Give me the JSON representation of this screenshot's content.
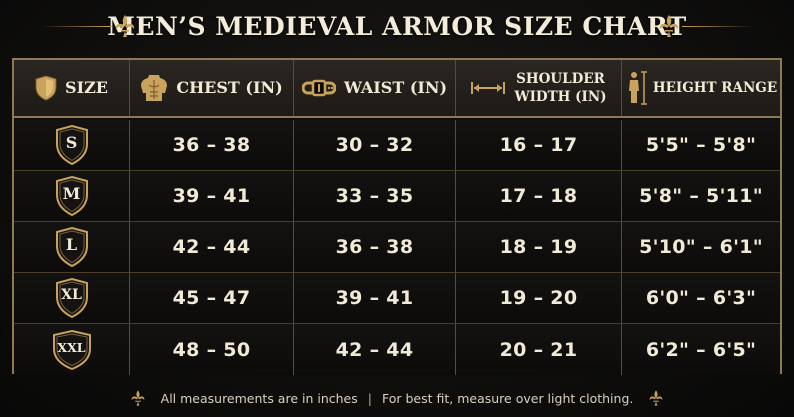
{
  "title": "MEN’S MEDIEVAL ARMOR SIZE CHART",
  "headers": {
    "size": "SIZE",
    "chest": "CHEST (IN)",
    "waist": "WAIST (IN)",
    "shoulder_line1": "SHOULDER",
    "shoulder_line2": "WIDTH (IN)",
    "height": "HEIGHT RANGE"
  },
  "rows": [
    {
      "size": "S",
      "chest": "36 – 38",
      "waist": "30 – 32",
      "shoulder": "16 – 17",
      "height": "5'5\" – 5'8\""
    },
    {
      "size": "M",
      "chest": "39 – 41",
      "waist": "33 – 35",
      "shoulder": "17 – 18",
      "height": "5'8\" – 5'11\""
    },
    {
      "size": "L",
      "chest": "42 – 44",
      "waist": "36 – 38",
      "shoulder": "18 – 19",
      "height": "5'10\" – 6'1\""
    },
    {
      "size": "XL",
      "chest": "45 – 47",
      "waist": "39 – 41",
      "shoulder": "19 – 20",
      "height": "6'0\" – 6'3\""
    },
    {
      "size": "XXL",
      "chest": "48 – 50",
      "waist": "42 – 44",
      "shoulder": "20 – 21",
      "height": "6'2\" – 6'5\""
    }
  ],
  "footer": {
    "left": "All measurements are in inches",
    "separator": "|",
    "right": "For best fit, measure over light clothing."
  },
  "colors": {
    "background": "#0d0c0b",
    "border_gold": "#8e7a52",
    "icon_gold": "#c9a25d",
    "text": "#f1ead6"
  },
  "icons": {
    "size": "shield-icon",
    "chest": "torso-icon",
    "waist": "belt-icon",
    "shoulder": "width-arrow-icon",
    "height": "height-figure-icon",
    "ornament": "fleur-de-lis-icon"
  }
}
